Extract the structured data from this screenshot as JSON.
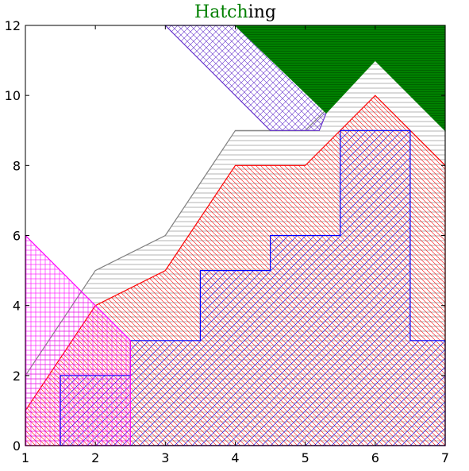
{
  "chart_data": {
    "type": "area",
    "title_parts": [
      {
        "text": "Hatch",
        "color": "#008000"
      },
      {
        "text": "ing",
        "color": "#000000"
      }
    ],
    "xlabel": "",
    "ylabel": "",
    "xlim": [
      1,
      7
    ],
    "ylim": [
      0,
      12
    ],
    "x_ticks": [
      1,
      2,
      3,
      4,
      5,
      6,
      7
    ],
    "y_ticks": [
      0,
      2,
      4,
      6,
      8,
      10,
      12
    ],
    "grid": false,
    "series": [
      {
        "id": "gray-horizontal",
        "edge_color": "#808080",
        "hatch": "horizontal",
        "points": [
          [
            1,
            2
          ],
          [
            2,
            5
          ],
          [
            3,
            6
          ],
          [
            4,
            9
          ],
          [
            5,
            9
          ],
          [
            6,
            11
          ],
          [
            7,
            9
          ],
          [
            7,
            0
          ],
          [
            1,
            0
          ]
        ]
      },
      {
        "id": "red-backslash",
        "edge_color": "#ff0000",
        "hatch": "backslash",
        "points": [
          [
            1,
            1
          ],
          [
            2,
            4
          ],
          [
            3,
            5
          ],
          [
            4,
            8
          ],
          [
            5,
            8
          ],
          [
            6,
            10
          ],
          [
            7,
            8
          ],
          [
            7,
            0
          ],
          [
            1,
            0
          ]
        ]
      },
      {
        "id": "blue-step-diagonal",
        "edge_color": "#0000ff",
        "hatch": "diagonal",
        "points": [
          [
            1.5,
            0
          ],
          [
            1.5,
            2
          ],
          [
            2.5,
            2
          ],
          [
            2.5,
            3
          ],
          [
            3.5,
            3
          ],
          [
            3.5,
            5
          ],
          [
            4.5,
            5
          ],
          [
            4.5,
            6
          ],
          [
            5.5,
            6
          ],
          [
            5.5,
            9
          ],
          [
            6.5,
            9
          ],
          [
            6.5,
            3
          ],
          [
            7,
            3
          ],
          [
            7,
            0
          ]
        ]
      },
      {
        "id": "magenta-grid",
        "edge_color": "#ff00ff",
        "hatch": "grid",
        "points": [
          [
            1,
            0
          ],
          [
            1,
            6
          ],
          [
            2,
            4
          ],
          [
            2.5,
            3
          ],
          [
            2.5,
            0
          ]
        ]
      },
      {
        "id": "purple-crosshatch",
        "edge_color": "#6633cc",
        "hatch": "crosshatch",
        "points": [
          [
            3,
            12
          ],
          [
            4,
            12
          ],
          [
            5,
            10.5
          ],
          [
            5.3,
            9.5
          ],
          [
            5.2,
            9
          ],
          [
            4.5,
            9
          ]
        ]
      },
      {
        "id": "green-solid",
        "edge_color": "#008000",
        "fill_color": "#008000",
        "hatch": "horizontal-dense",
        "points": [
          [
            4,
            12
          ],
          [
            7,
            12
          ],
          [
            7,
            9
          ],
          [
            6,
            11
          ],
          [
            5.3,
            9.5
          ]
        ]
      }
    ]
  }
}
